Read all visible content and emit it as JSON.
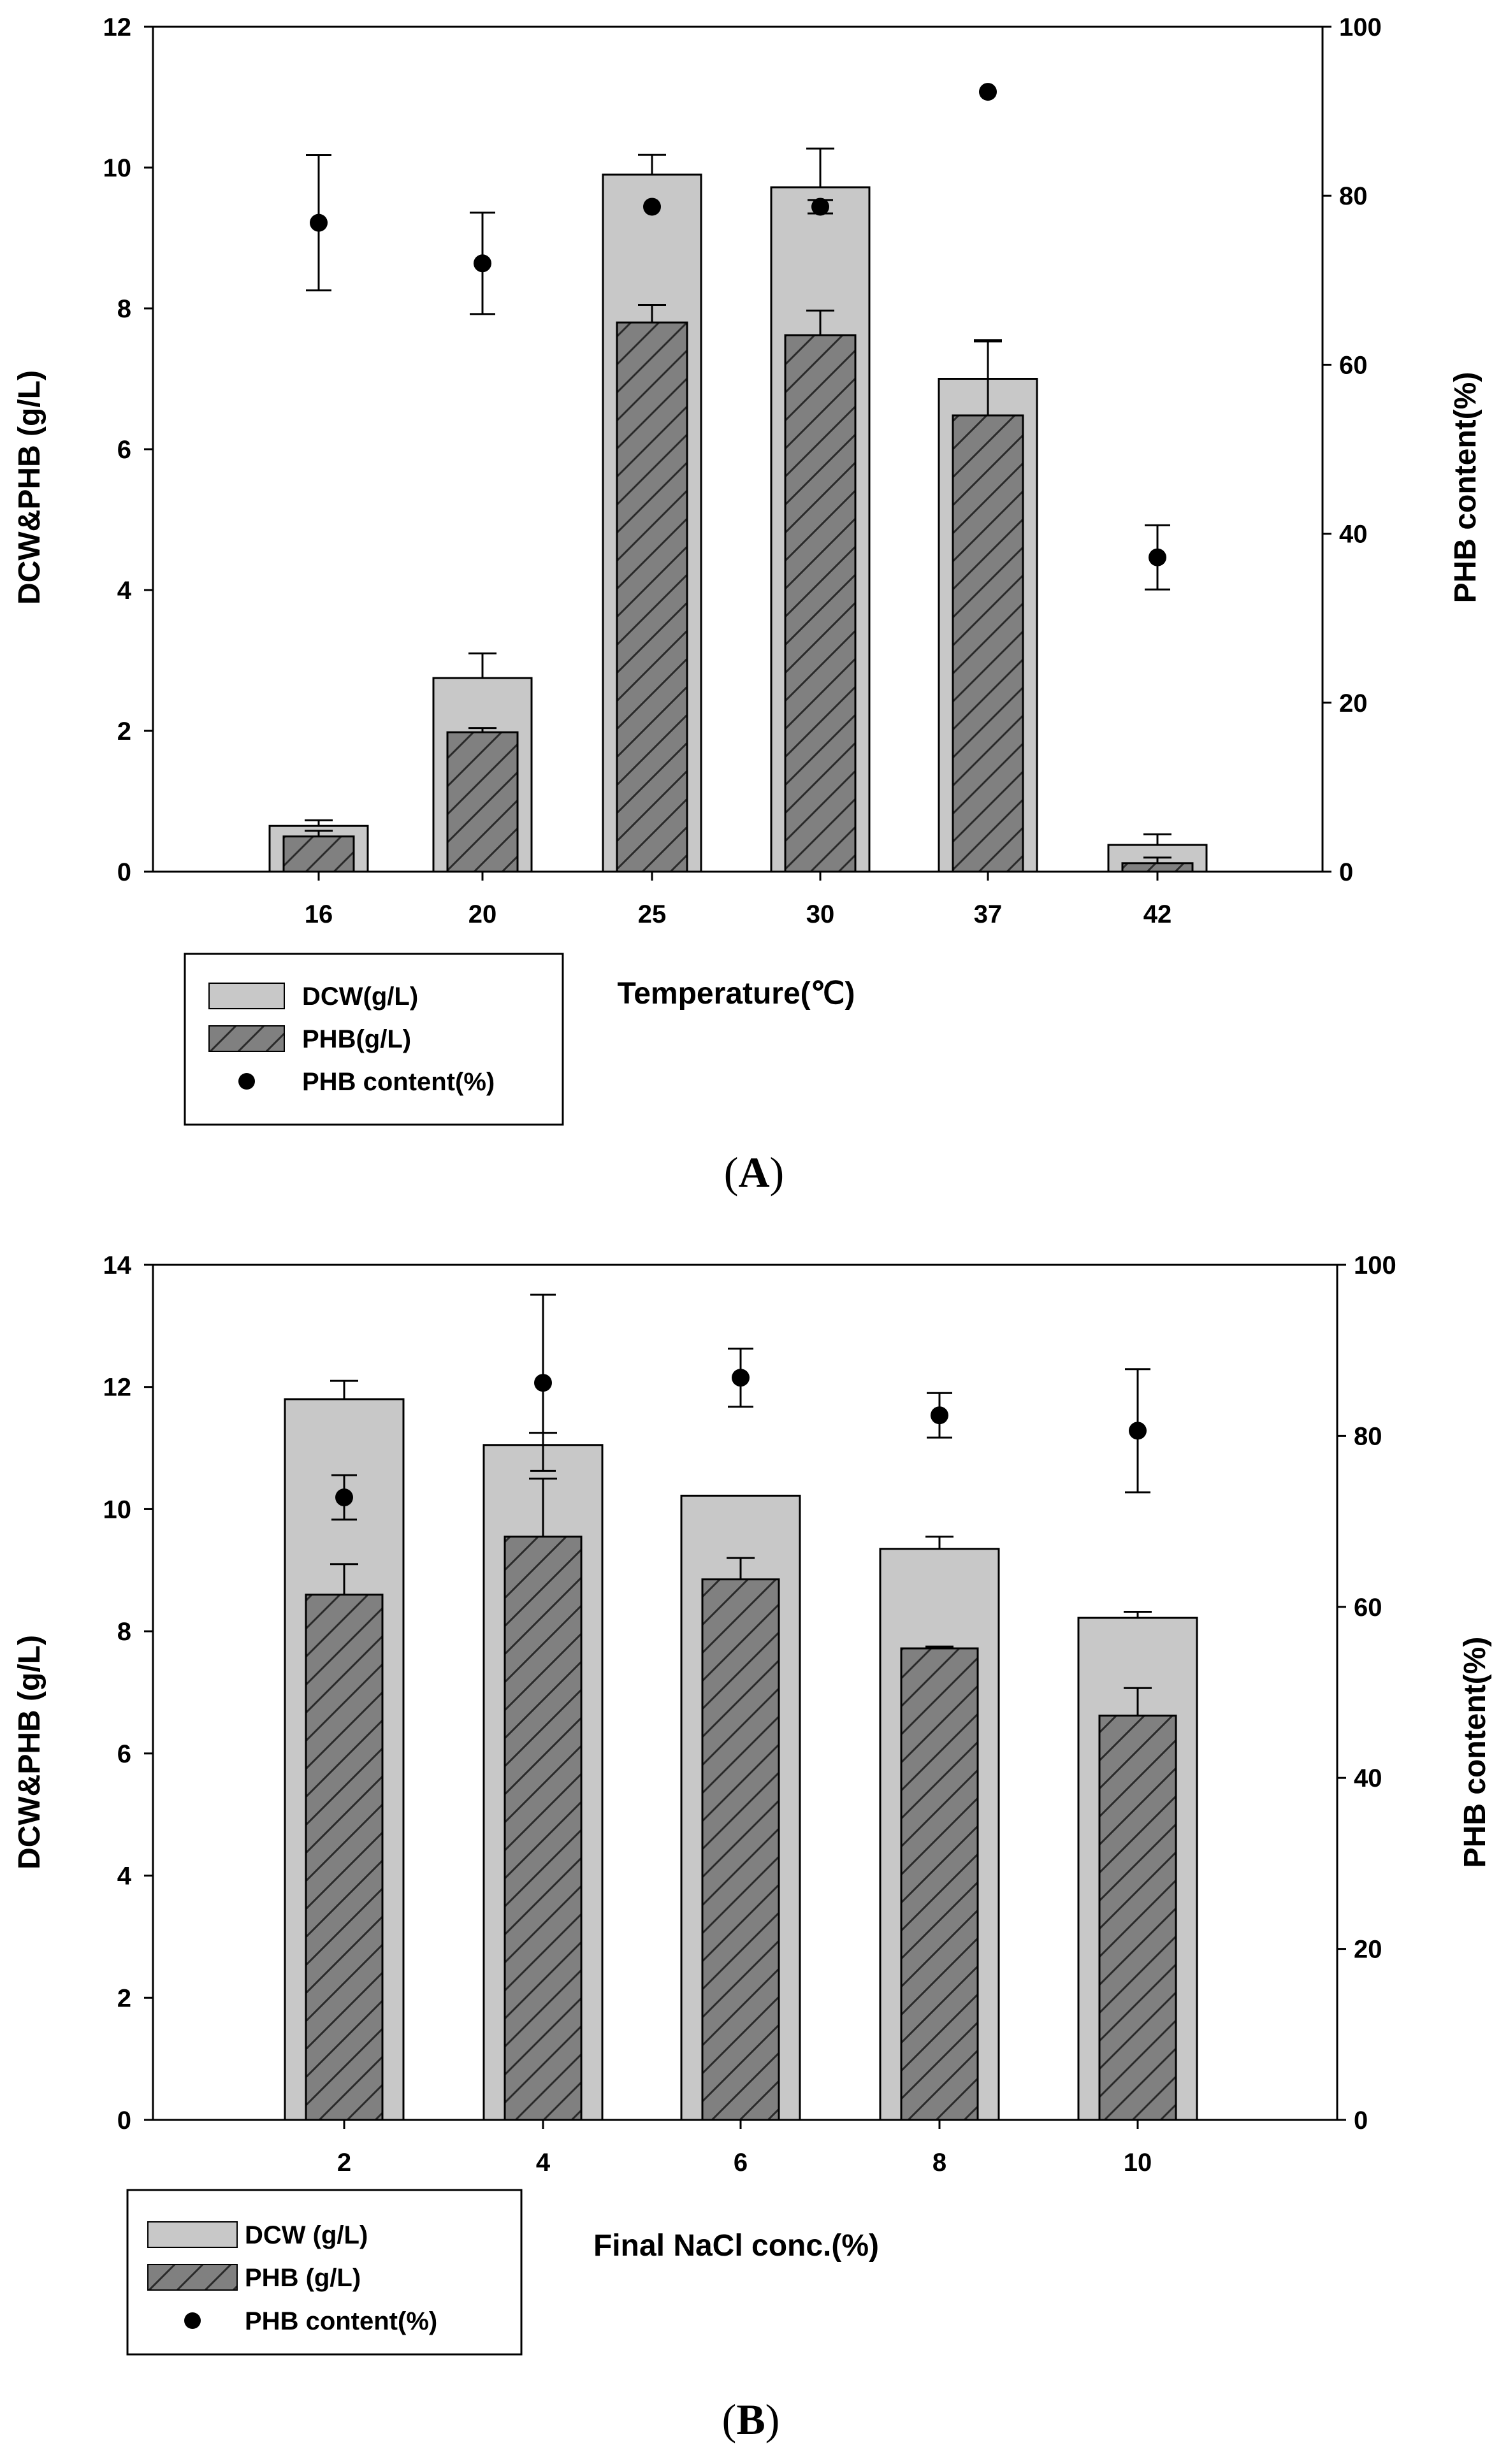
{
  "figure": {
    "panel_a_caption": {
      "open": "(",
      "letter": "A",
      "close": ")"
    },
    "panel_b_caption": {
      "open": "(",
      "letter": "B",
      "close": ")"
    }
  },
  "colors": {
    "dcw_fill": "#c8c8c8",
    "phb_fill": "#808080",
    "hatch": "#2a2a2a",
    "point": "#000000",
    "axis": "#000000"
  },
  "chart_data": [
    {
      "id": "A",
      "type": "bar",
      "title": "",
      "xlabel": "Temperature(℃)",
      "ylabel": "DCW&PHB (g/L)",
      "y2label": "PHB content(%)",
      "categories": [
        "16",
        "20",
        "25",
        "30",
        "37",
        "42"
      ],
      "ylim": [
        0,
        12
      ],
      "yticks": [
        0,
        2,
        4,
        6,
        8,
        10,
        12
      ],
      "y2lim": [
        0,
        100
      ],
      "y2ticks": [
        0,
        20,
        40,
        60,
        80,
        100
      ],
      "series": [
        {
          "name": "DCW(g/L)",
          "kind": "bar",
          "values": [
            0.65,
            2.75,
            9.9,
            9.72,
            7.0,
            0.38
          ],
          "errors": [
            0.08,
            0.35,
            0.28,
            0.55,
            0.55,
            0.15
          ]
        },
        {
          "name": "PHB(g/L)",
          "kind": "bar-hatched",
          "values": [
            0.5,
            1.98,
            7.8,
            7.62,
            6.48,
            0.12
          ],
          "errors": [
            0.08,
            0.06,
            0.25,
            0.35,
            1.05,
            0.08
          ]
        },
        {
          "name": "PHB content(%)",
          "kind": "scatter",
          "axis": "right",
          "values": [
            76.8,
            72.0,
            78.7,
            78.7,
            92.3,
            37.2
          ],
          "errors": [
            8.0,
            6.0,
            0.0,
            0.8,
            0.0,
            3.8
          ]
        }
      ],
      "legend": {
        "position": "bottom-left",
        "items": [
          "DCW(g/L)",
          "PHB(g/L)",
          "PHB content(%)"
        ]
      },
      "grid": false
    },
    {
      "id": "B",
      "type": "bar",
      "title": "",
      "xlabel": "Final NaCl conc.(%)",
      "ylabel": "DCW&PHB (g/L)",
      "y2label": "PHB content(%)",
      "categories": [
        "2",
        "4",
        "6",
        "8",
        "10"
      ],
      "ylim": [
        0,
        14
      ],
      "yticks": [
        0,
        2,
        4,
        6,
        8,
        10,
        12,
        14
      ],
      "y2lim": [
        0,
        100
      ],
      "y2ticks": [
        0,
        20,
        40,
        60,
        80,
        100
      ],
      "series": [
        {
          "name": "DCW (g/L)",
          "kind": "bar",
          "values": [
            11.8,
            11.05,
            10.22,
            9.35,
            8.22
          ],
          "errors": [
            0.3,
            0.2,
            0.0,
            0.2,
            0.1
          ]
        },
        {
          "name": "PHB (g/L)",
          "kind": "bar-hatched",
          "values": [
            8.6,
            9.55,
            8.85,
            7.72,
            6.62
          ],
          "errors": [
            0.5,
            0.95,
            0.35,
            0.03,
            0.45
          ]
        },
        {
          "name": "PHB content(%)",
          "kind": "scatter",
          "axis": "right",
          "values": [
            72.8,
            86.2,
            86.8,
            82.4,
            80.6
          ],
          "errors": [
            2.6,
            10.3,
            3.4,
            2.6,
            7.2
          ]
        }
      ],
      "legend": {
        "position": "bottom-left",
        "items": [
          "DCW (g/L)",
          "PHB (g/L)",
          "PHB content(%)"
        ]
      },
      "grid": false
    }
  ]
}
